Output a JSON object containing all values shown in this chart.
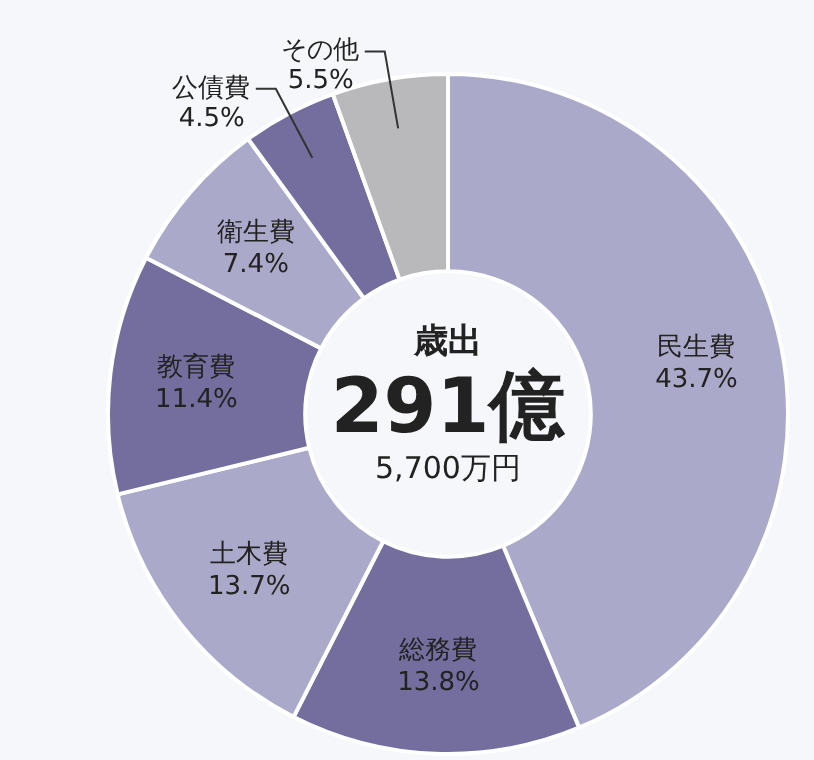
{
  "chart_data": {
    "type": "donut",
    "title": "歳出",
    "annotations": [
      "291億",
      "5,700万円"
    ],
    "categories": [
      "民生費",
      "総務費",
      "土木費",
      "教育費",
      "衛生費",
      "公債費",
      "その他"
    ],
    "values": [
      43.7,
      13.8,
      13.7,
      11.4,
      7.4,
      4.5,
      5.5
    ],
    "value_labels": [
      "43.7%",
      "13.8%",
      "13.7%",
      "11.4%",
      "7.4%",
      "4.5%",
      "5.5%"
    ],
    "colors": [
      "#aba9c9",
      "#736e9e",
      "#aba9c9",
      "#736e9e",
      "#aba9c9",
      "#736e9e",
      "#b9b9bb"
    ]
  }
}
